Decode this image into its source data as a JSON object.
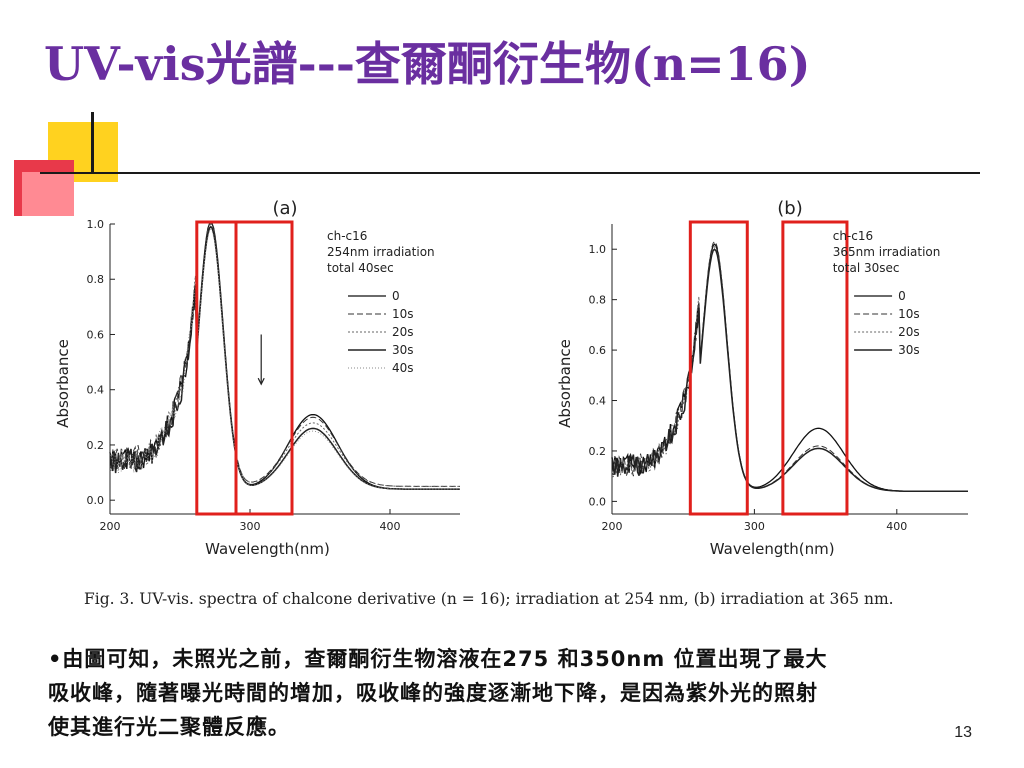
{
  "slide": {
    "title": "UV-vis光譜---查爾酮衍生物(n=16)",
    "caption": "Fig. 3. UV-vis. spectra of chalcone derivative (n = 16); irradiation at 254 nm, (b) irradiation at 365 nm.",
    "bullet": "•由圖可知，未照光之前，查爾酮衍生物溶液在275 和350nm 位置出現了最大吸收峰，隨著曝光時間的增加，吸收峰的強度逐漸地下降，是因為紫外光的照射使其進行光二聚體反應。",
    "page_number": "13",
    "colors": {
      "title": "#6a2fa0",
      "highlight_box": "#e0201c",
      "curve": "#222222"
    }
  },
  "chart_data": [
    {
      "type": "line",
      "panel_label": "(a)",
      "xlabel": "Wavelength(nm)",
      "ylabel": "Absorbance",
      "xlim": [
        200,
        450
      ],
      "ylim": [
        -0.05,
        1.0
      ],
      "xticks": [
        200,
        300,
        400
      ],
      "yticks": [
        0.0,
        0.2,
        0.4,
        0.6,
        0.8,
        1.0
      ],
      "ytick_labels": [
        "0.0",
        "0.2",
        "0.4",
        "0.6",
        "0.8",
        "1.0"
      ],
      "annotation": [
        "ch-c16",
        "254nm irradiation",
        "total 40sec"
      ],
      "arrow": "down",
      "highlight_ranges": [
        [
          262,
          290
        ],
        [
          290,
          330
        ]
      ],
      "legend": [
        "0",
        "10s",
        "20s",
        "30s",
        "40s"
      ],
      "series": [
        {
          "name": "0",
          "peak1": 0.97,
          "peak2": 0.3,
          "base": 0.04
        },
        {
          "name": "10s",
          "peak1": 0.96,
          "peak2": 0.28,
          "base": 0.05
        },
        {
          "name": "20s",
          "peak1": 0.95,
          "peak2": 0.26,
          "base": 0.05
        },
        {
          "name": "30s",
          "peak1": 0.95,
          "peak2": 0.25,
          "base": 0.04
        },
        {
          "name": "40s",
          "peak1": 0.94,
          "peak2": 0.24,
          "base": 0.04
        }
      ]
    },
    {
      "type": "line",
      "panel_label": "(b)",
      "xlabel": "Wavelength(nm)",
      "ylabel": "Absorbance",
      "xlim": [
        200,
        450
      ],
      "ylim": [
        -0.05,
        1.1
      ],
      "xticks": [
        200,
        300,
        400
      ],
      "yticks": [
        0.0,
        0.2,
        0.4,
        0.6,
        0.8,
        1.0
      ],
      "ytick_labels": [
        "0.0",
        "0.2",
        "0.4",
        "0.6",
        "0.8",
        "1.0"
      ],
      "annotation": [
        "ch-c16",
        "365nm irradiation",
        "total 30sec"
      ],
      "highlight_ranges": [
        [
          255,
          295
        ],
        [
          320,
          365
        ]
      ],
      "legend": [
        "0",
        "10s",
        "20s",
        "30s"
      ],
      "series": [
        {
          "name": "0",
          "peak1": 0.98,
          "peak2": 0.28,
          "base": 0.04
        },
        {
          "name": "10s",
          "peak1": 0.99,
          "peak2": 0.21,
          "base": 0.04
        },
        {
          "name": "20s",
          "peak1": 0.97,
          "peak2": 0.2,
          "base": 0.04
        },
        {
          "name": "30s",
          "peak1": 0.96,
          "peak2": 0.2,
          "base": 0.04
        }
      ]
    }
  ]
}
